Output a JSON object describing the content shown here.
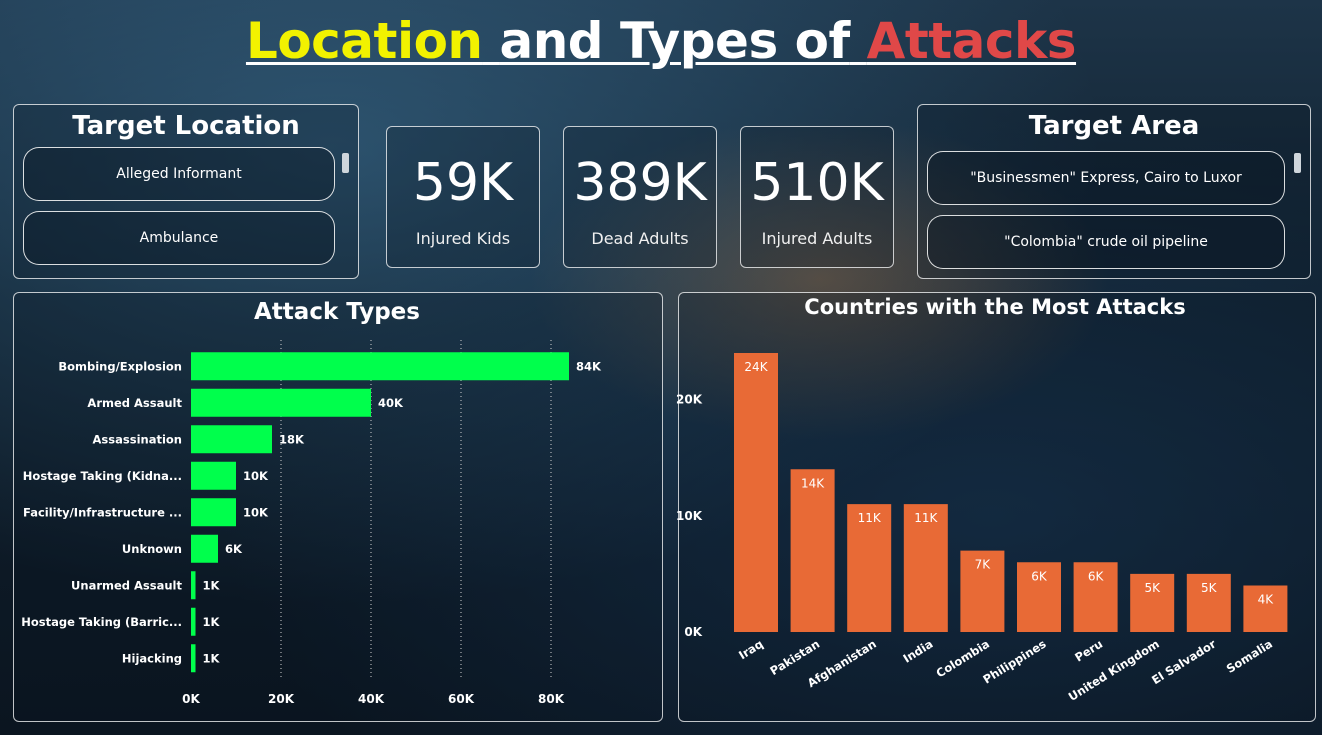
{
  "title": {
    "part1": "Location",
    "part2": "and Types of",
    "part3": "Attacks"
  },
  "colors": {
    "yellow": "#f2f200",
    "white": "#ffffff",
    "red": "#e04848",
    "bar_green": "#00ff4c",
    "bar_orange": "#e86a36"
  },
  "target_location": {
    "title": "Target Location",
    "items": [
      "Alleged Informant",
      "Ambulance"
    ]
  },
  "target_area": {
    "title": "Target Area",
    "items": [
      "\"Businessmen\" Express, Cairo to Luxor",
      "\"Colombia\" crude oil pipeline"
    ]
  },
  "kpis": [
    {
      "value": "59K",
      "label": "Injured Kids"
    },
    {
      "value": "389K",
      "label": "Dead Adults"
    },
    {
      "value": "510K",
      "label": "Injured Adults"
    }
  ],
  "chart_data": [
    {
      "type": "bar",
      "orientation": "horizontal",
      "title": "Attack Types",
      "categories": [
        "Bombing/Explosion",
        "Armed Assault",
        "Assassination",
        "Hostage Taking (Kidna...",
        "Facility/Infrastructure ...",
        "Unknown",
        "Unarmed Assault",
        "Hostage Taking (Barric...",
        "Hijacking"
      ],
      "values": [
        84000,
        40000,
        18000,
        10000,
        10000,
        6000,
        1000,
        1000,
        1000
      ],
      "data_labels": [
        "84K",
        "40K",
        "18K",
        "10K",
        "10K",
        "6K",
        "1K",
        "1K",
        "1K"
      ],
      "xlim": [
        0,
        90000
      ],
      "ticks": [
        0,
        20000,
        40000,
        60000,
        80000
      ],
      "tick_labels": [
        "0K",
        "20K",
        "40K",
        "60K",
        "80K"
      ],
      "grid": true
    },
    {
      "type": "bar",
      "orientation": "vertical",
      "title": "Countries with the Most Attacks",
      "categories": [
        "Iraq",
        "Pakistan",
        "Afghanistan",
        "India",
        "Colombia",
        "Philippines",
        "Peru",
        "United Kingdom",
        "El Salvador",
        "Somalia"
      ],
      "values": [
        24000,
        14000,
        11000,
        11000,
        7000,
        6000,
        6000,
        5000,
        5000,
        4000
      ],
      "data_labels": [
        "24K",
        "14K",
        "11K",
        "11K",
        "7K",
        "6K",
        "6K",
        "5K",
        "5K",
        "4K"
      ],
      "ylim": [
        0,
        24000
      ],
      "ticks": [
        0,
        10000,
        20000
      ],
      "tick_labels": [
        "0K",
        "10K",
        "20K"
      ],
      "grid": false
    }
  ]
}
